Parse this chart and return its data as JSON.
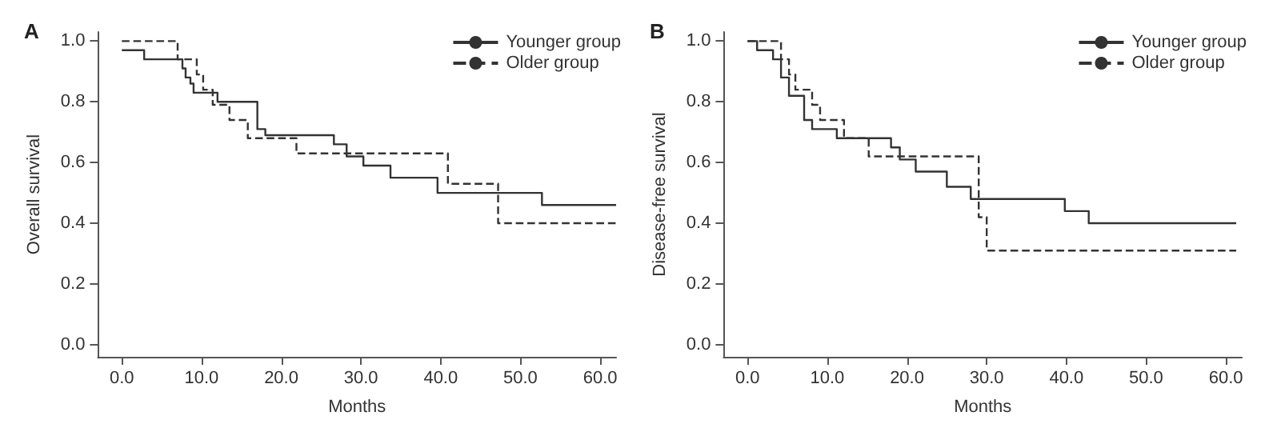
{
  "chart_data": [
    {
      "type": "step",
      "title": "A",
      "xlabel": "Months",
      "ylabel": "Overall survival",
      "xlim": [
        -3,
        62
      ],
      "ylim": [
        -0.04,
        1.03
      ],
      "xticks": [
        {
          "value": 0,
          "label": "0.0"
        },
        {
          "value": 10,
          "label": "10.0"
        },
        {
          "value": 20,
          "label": "20.0"
        },
        {
          "value": 30,
          "label": "30.0"
        },
        {
          "value": 40,
          "label": "40.0"
        },
        {
          "value": 50,
          "label": "50.0"
        },
        {
          "value": 60,
          "label": "60.0"
        }
      ],
      "yticks": [
        {
          "value": 0,
          "label": "0.0"
        },
        {
          "value": 0.2,
          "label": "0.2"
        },
        {
          "value": 0.4,
          "label": "0.4"
        },
        {
          "value": 0.6,
          "label": "0.6"
        },
        {
          "value": 0.8,
          "label": "0.8"
        },
        {
          "value": 1,
          "label": "1.0"
        }
      ],
      "grid": false,
      "legend": "top right",
      "marker": "none",
      "series": [
        {
          "name": "Younger group",
          "color": "#333333",
          "line_style": "solid",
          "x": [
            0,
            2.8,
            7.6,
            8.0,
            8.6,
            9.0,
            12,
            17,
            18,
            26.6,
            28.2,
            30.3,
            33.7,
            39.6,
            52.7,
            62
          ],
          "values": [
            0.97,
            0.94,
            0.91,
            0.88,
            0.86,
            0.83,
            0.8,
            0.71,
            0.69,
            0.66,
            0.62,
            0.59,
            0.55,
            0.5,
            0.46,
            0.46
          ]
        },
        {
          "name": "Older group",
          "color": "#333333",
          "line_style": "dashed",
          "x": [
            0,
            7,
            9.4,
            10.2,
            11.4,
            13.5,
            15.8,
            21.9,
            40.9,
            47.2,
            62
          ],
          "values": [
            1.0,
            0.94,
            0.89,
            0.84,
            0.79,
            0.74,
            0.68,
            0.63,
            0.53,
            0.4,
            0.4
          ]
        }
      ]
    },
    {
      "type": "step",
      "title": "B",
      "xlabel": "Months",
      "ylabel": "Disease-free survival",
      "xlim": [
        -3,
        62
      ],
      "ylim": [
        -0.04,
        1.03
      ],
      "xticks": [
        {
          "value": 0,
          "label": "0.0"
        },
        {
          "value": 10,
          "label": "10.0"
        },
        {
          "value": 20,
          "label": "20.0"
        },
        {
          "value": 30,
          "label": "30.0"
        },
        {
          "value": 40,
          "label": "40.0"
        },
        {
          "value": 50,
          "label": "50.0"
        },
        {
          "value": 60,
          "label": "60.0"
        }
      ],
      "yticks": [
        {
          "value": 0,
          "label": "0.0"
        },
        {
          "value": 0.2,
          "label": "0.2"
        },
        {
          "value": 0.4,
          "label": "0.4"
        },
        {
          "value": 0.6,
          "label": "0.6"
        },
        {
          "value": 0.8,
          "label": "0.8"
        },
        {
          "value": 1,
          "label": "1.0"
        }
      ],
      "grid": false,
      "legend": "top right",
      "marker": "none",
      "series": [
        {
          "name": "Younger group",
          "color": "#333333",
          "line_style": "solid",
          "x": [
            0,
            1.2,
            3.2,
            4.2,
            5.2,
            7.1,
            8.1,
            11.2,
            18,
            19.1,
            21.1,
            25,
            28,
            39.8,
            42.8,
            61.3
          ],
          "values": [
            1.0,
            0.97,
            0.94,
            0.88,
            0.82,
            0.74,
            0.71,
            0.68,
            0.65,
            0.61,
            0.57,
            0.52,
            0.48,
            0.44,
            0.4,
            0.4
          ]
        },
        {
          "name": "Older group",
          "color": "#333333",
          "line_style": "dashed",
          "x": [
            0,
            4.2,
            5.2,
            6,
            8.1,
            9.1,
            12.1,
            15.2,
            29,
            30,
            61.3
          ],
          "values": [
            1.0,
            0.94,
            0.89,
            0.84,
            0.79,
            0.74,
            0.68,
            0.62,
            0.42,
            0.31,
            0.31
          ]
        }
      ]
    }
  ]
}
